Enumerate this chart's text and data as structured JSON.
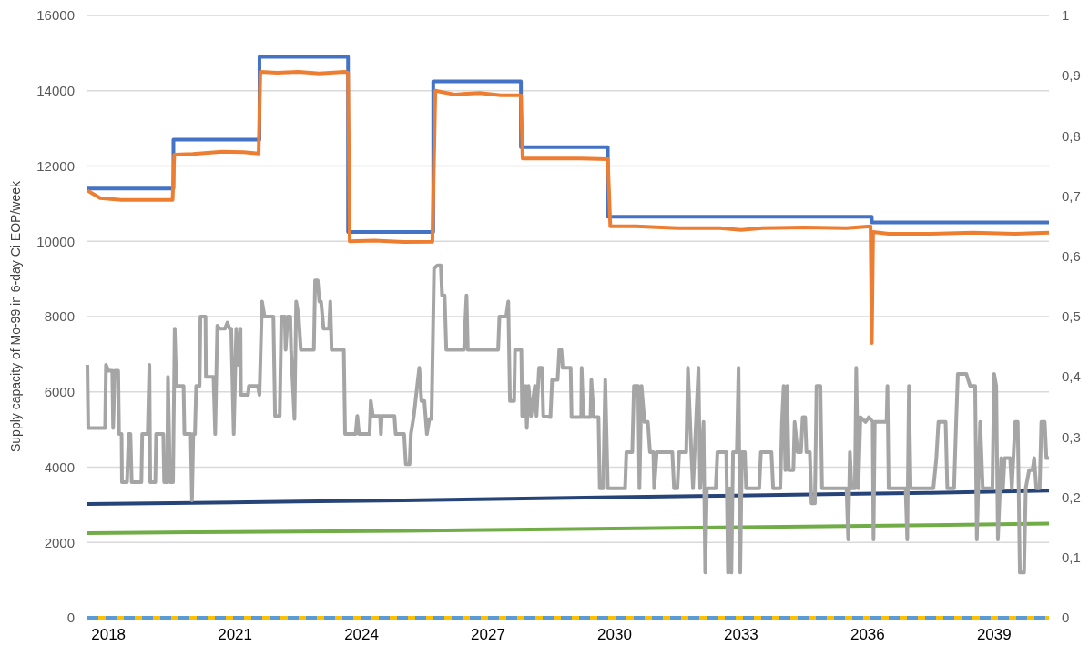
{
  "chart_data": {
    "type": "line",
    "ylabel": "Supply capacity of Mo-99 in 6-day Ci EOP/week",
    "xlim": [
      2017.5,
      2040.3
    ],
    "xticks": [
      2018,
      2021,
      2024,
      2027,
      2030,
      2033,
      2036,
      2039
    ],
    "ylim": [
      0,
      16000
    ],
    "yticks": [
      0,
      2000,
      4000,
      6000,
      8000,
      10000,
      12000,
      14000,
      16000
    ],
    "y2lim": [
      0,
      1
    ],
    "y2ticks": [
      {
        "value": 0,
        "label": "0"
      },
      {
        "value": 0.1,
        "label": "0,1"
      },
      {
        "value": 0.2,
        "label": "0,2"
      },
      {
        "value": 0.3,
        "label": "0,3"
      },
      {
        "value": 0.4,
        "label": "0,4"
      },
      {
        "value": 0.5,
        "label": "0,5"
      },
      {
        "value": 0.6,
        "label": "0,6"
      },
      {
        "value": 0.7,
        "label": "0,7"
      },
      {
        "value": 0.8,
        "label": "0,8"
      },
      {
        "value": 0.9,
        "label": "0,9"
      },
      {
        "value": 1,
        "label": "1"
      }
    ],
    "grid": "y",
    "series": [
      {
        "color": "#ffc000",
        "x": [
          2017.5,
          2040.3
        ],
        "values": [
          0,
          0
        ]
      },
      {
        "color": "#5b9bd5",
        "line_style": "dashed",
        "x": [
          2017.5,
          2040.3
        ],
        "values": [
          0,
          0
        ]
      },
      {
        "color": "#264478",
        "x": [
          2017.5,
          2020.0,
          2022.5,
          2025.0,
          2027.5,
          2030.0,
          2032.5,
          2035.0,
          2037.5,
          2040.3
        ],
        "values": [
          3020,
          3050,
          3090,
          3120,
          3160,
          3200,
          3240,
          3280,
          3320,
          3380
        ]
      },
      {
        "color": "#70ad47",
        "x": [
          2017.5,
          2020.0,
          2022.5,
          2025.0,
          2027.5,
          2030.0,
          2032.5,
          2035.0,
          2037.5,
          2040.3
        ],
        "values": [
          2250,
          2270,
          2290,
          2310,
          2340,
          2370,
          2400,
          2430,
          2460,
          2500
        ]
      },
      {
        "color": "#a5a5a5",
        "axis": "y2",
        "x": [
          2017.5,
          2017.52,
          2017.92,
          2017.94,
          2018.0,
          2018.09,
          2018.11,
          2018.15,
          2018.23,
          2018.25,
          2018.31,
          2018.32,
          2018.44,
          2018.48,
          2018.52,
          2018.55,
          2018.78,
          2018.8,
          2018.93,
          2018.97,
          2018.99,
          2019.11,
          2019.13,
          2019.3,
          2019.32,
          2019.39,
          2019.41,
          2019.46,
          2019.53,
          2019.57,
          2019.61,
          2019.78,
          2019.8,
          2019.95,
          2019.98,
          2020.01,
          2020.05,
          2020.08,
          2020.16,
          2020.18,
          2020.3,
          2020.31,
          2020.49,
          2020.53,
          2020.58,
          2020.64,
          2020.76,
          2020.82,
          2020.87,
          2020.91,
          2020.97,
          2021.03,
          2021.07,
          2021.13,
          2021.14,
          2021.31,
          2021.33,
          2021.54,
          2021.58,
          2021.64,
          2021.7,
          2021.91,
          2021.95,
          2022.06,
          2022.1,
          2022.18,
          2022.2,
          2022.25,
          2022.31,
          2022.33,
          2022.41,
          2022.45,
          2022.51,
          2022.56,
          2022.87,
          2022.9,
          2022.96,
          2023.0,
          2023.04,
          2023.1,
          2023.23,
          2023.26,
          2023.29,
          2023.58,
          2023.61,
          2023.86,
          2023.9,
          2023.94,
          2024.19,
          2024.22,
          2024.27,
          2024.44,
          2024.46,
          2024.48,
          2024.78,
          2024.81,
          2025.01,
          2025.05,
          2025.14,
          2025.17,
          2025.24,
          2025.32,
          2025.37,
          2025.42,
          2025.49,
          2025.55,
          2025.61,
          2025.66,
          2025.72,
          2025.8,
          2025.88,
          2025.91,
          2025.97,
          2026.01,
          2026.43,
          2026.49,
          2026.52,
          2027.24,
          2027.27,
          2027.43,
          2027.48,
          2027.52,
          2027.62,
          2027.64,
          2027.79,
          2027.81,
          2027.87,
          2027.89,
          2027.92,
          2027.96,
          2028.02,
          2028.11,
          2028.15,
          2028.21,
          2028.28,
          2028.31,
          2028.48,
          2028.52,
          2028.65,
          2028.69,
          2028.74,
          2028.77,
          2028.96,
          2028.98,
          2029.21,
          2029.22,
          2029.26,
          2029.43,
          2029.45,
          2029.51,
          2029.62,
          2029.65,
          2029.73,
          2029.78,
          2029.84,
          2030.25,
          2030.28,
          2030.42,
          2030.46,
          2030.56,
          2030.59,
          2030.64,
          2030.71,
          2030.79,
          2030.84,
          2030.92,
          2030.94,
          2031.0,
          2031.37,
          2031.41,
          2031.49,
          2031.53,
          2031.7,
          2031.74,
          2031.82,
          2031.86,
          2031.99,
          2032.03,
          2032.11,
          2032.15,
          2032.19,
          2032.4,
          2032.44,
          2032.65,
          2032.69,
          2032.73,
          2032.77,
          2032.81,
          2032.9,
          2032.94,
          2032.98,
          2033.02,
          2033.09,
          2033.12,
          2033.43,
          2033.47,
          2033.72,
          2033.76,
          2033.93,
          2033.97,
          2034.01,
          2034.05,
          2034.09,
          2034.13,
          2034.24,
          2034.27,
          2034.34,
          2034.42,
          2034.46,
          2034.52,
          2034.55,
          2034.63,
          2034.67,
          2034.75,
          2034.79,
          2034.88,
          2034.92,
          2035.5,
          2035.54,
          2035.58,
          2035.62,
          2035.7,
          2035.73,
          2035.78,
          2035.83,
          2035.95,
          2036.03,
          2036.12,
          2036.14,
          2036.17,
          2036.45,
          2036.47,
          2036.5,
          2036.9,
          2036.94,
          2036.98,
          2037.02,
          2037.56,
          2037.63,
          2037.68,
          2037.85,
          2037.89,
          2038.05,
          2038.1,
          2038.14,
          2038.34,
          2038.43,
          2038.55,
          2038.59,
          2038.67,
          2038.73,
          2038.96,
          2039.0,
          2039.05,
          2039.09,
          2039.17,
          2039.21,
          2039.25,
          2039.38,
          2039.42,
          2039.5,
          2039.56,
          2039.61,
          2039.71,
          2039.75,
          2039.83,
          2039.91,
          2039.95,
          2040.0,
          2040.08,
          2040.12,
          2040.2,
          2040.24,
          2040.3
        ],
        "values": [
          0.42,
          0.315,
          0.315,
          0.42,
          0.41,
          0.41,
          0.315,
          0.41,
          0.41,
          0.305,
          0.305,
          0.225,
          0.225,
          0.305,
          0.305,
          0.225,
          0.225,
          0.305,
          0.305,
          0.42,
          0.225,
          0.225,
          0.305,
          0.305,
          0.225,
          0.225,
          0.4,
          0.225,
          0.225,
          0.48,
          0.385,
          0.385,
          0.305,
          0.305,
          0.195,
          0.305,
          0.305,
          0.385,
          0.385,
          0.5,
          0.5,
          0.4,
          0.4,
          0.305,
          0.485,
          0.48,
          0.48,
          0.49,
          0.48,
          0.48,
          0.305,
          0.48,
          0.42,
          0.48,
          0.37,
          0.37,
          0.385,
          0.385,
          0.37,
          0.525,
          0.5,
          0.5,
          0.335,
          0.335,
          0.5,
          0.5,
          0.445,
          0.5,
          0.5,
          0.445,
          0.33,
          0.525,
          0.5,
          0.445,
          0.445,
          0.56,
          0.56,
          0.525,
          0.525,
          0.48,
          0.48,
          0.525,
          0.445,
          0.445,
          0.305,
          0.305,
          0.335,
          0.305,
          0.305,
          0.36,
          0.335,
          0.335,
          0.305,
          0.335,
          0.335,
          0.305,
          0.305,
          0.255,
          0.255,
          0.305,
          0.335,
          0.385,
          0.415,
          0.36,
          0.36,
          0.305,
          0.33,
          0.33,
          0.58,
          0.585,
          0.585,
          0.535,
          0.535,
          0.445,
          0.445,
          0.535,
          0.445,
          0.445,
          0.5,
          0.5,
          0.525,
          0.36,
          0.36,
          0.445,
          0.445,
          0.335,
          0.335,
          0.385,
          0.315,
          0.385,
          0.335,
          0.385,
          0.335,
          0.415,
          0.415,
          0.335,
          0.333,
          0.395,
          0.395,
          0.445,
          0.445,
          0.415,
          0.415,
          0.333,
          0.333,
          0.415,
          0.333,
          0.333,
          0.395,
          0.333,
          0.333,
          0.215,
          0.215,
          0.395,
          0.215,
          0.215,
          0.275,
          0.275,
          0.385,
          0.385,
          0.215,
          0.385,
          0.325,
          0.325,
          0.275,
          0.275,
          0.215,
          0.275,
          0.275,
          0.215,
          0.215,
          0.275,
          0.275,
          0.415,
          0.275,
          0.215,
          0.415,
          0.215,
          0.325,
          0.075,
          0.215,
          0.215,
          0.275,
          0.275,
          0.075,
          0.215,
          0.075,
          0.275,
          0.275,
          0.415,
          0.075,
          0.275,
          0.275,
          0.215,
          0.215,
          0.275,
          0.275,
          0.215,
          0.215,
          0.325,
          0.385,
          0.245,
          0.385,
          0.245,
          0.245,
          0.325,
          0.275,
          0.275,
          0.333,
          0.333,
          0.275,
          0.275,
          0.19,
          0.19,
          0.385,
          0.385,
          0.215,
          0.215,
          0.13,
          0.275,
          0.215,
          0.215,
          0.415,
          0.215,
          0.333,
          0.325,
          0.333,
          0.325,
          0.13,
          0.325,
          0.325,
          0.385,
          0.215,
          0.215,
          0.13,
          0.385,
          0.215,
          0.215,
          0.265,
          0.325,
          0.325,
          0.215,
          0.215,
          0.325,
          0.405,
          0.405,
          0.385,
          0.385,
          0.13,
          0.325,
          0.215,
          0.215,
          0.405,
          0.385,
          0.13,
          0.265,
          0.215,
          0.265,
          0.265,
          0.215,
          0.325,
          0.325,
          0.075,
          0.075,
          0.215,
          0.245,
          0.245,
          0.265,
          0.215,
          0.215,
          0.325,
          0.325,
          0.265,
          0.265
        ]
      },
      {
        "color": "#4472c4",
        "type": "step",
        "x": [
          2017.5,
          2019.54,
          2021.58,
          2023.68,
          2025.7,
          2027.78,
          2029.84,
          2036.1,
          2040.3
        ],
        "values": [
          11400,
          12700,
          14900,
          10250,
          14250,
          12500,
          10650,
          10500,
          10500
        ]
      },
      {
        "color": "#ed7d31",
        "x": [
          2017.5,
          2017.8,
          2018.3,
          2019.0,
          2019.52,
          2019.56,
          2020.0,
          2020.7,
          2021.2,
          2021.56,
          2021.6,
          2022.0,
          2022.5,
          2023.0,
          2023.6,
          2023.68,
          2023.72,
          2024.3,
          2025.0,
          2025.68,
          2025.75,
          2026.2,
          2026.8,
          2027.3,
          2027.78,
          2027.82,
          2028.5,
          2029.2,
          2029.84,
          2029.9,
          2030.5,
          2031.5,
          2032.5,
          2033.0,
          2033.5,
          2034.5,
          2035.5,
          2036.07,
          2036.1,
          2036.13,
          2036.5,
          2037.5,
          2038.5,
          2039.5,
          2040.3
        ],
        "values": [
          11350,
          11150,
          11100,
          11100,
          11100,
          12300,
          12320,
          12380,
          12370,
          12330,
          14500,
          14480,
          14500,
          14460,
          14500,
          14480,
          10000,
          10020,
          9980,
          9990,
          14000,
          13900,
          13940,
          13880,
          13880,
          12200,
          12200,
          12200,
          12180,
          10400,
          10400,
          10350,
          10350,
          10300,
          10350,
          10370,
          10350,
          10400,
          7300,
          10250,
          10200,
          10200,
          10230,
          10200,
          10230
        ]
      }
    ]
  }
}
